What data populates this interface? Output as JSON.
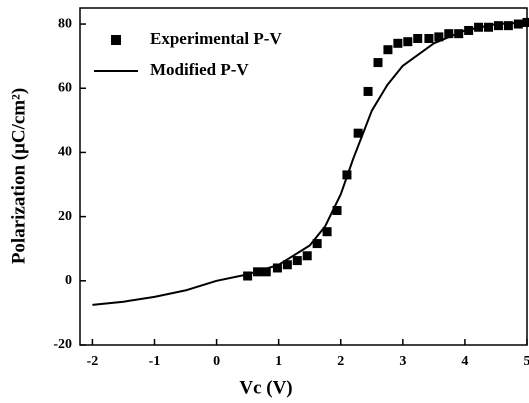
{
  "chart_data": {
    "type": "scatter",
    "xlabel": "Vc (V)",
    "ylabel": "Polarization (μC/cm²)",
    "xlim": [
      -2.2,
      5
    ],
    "xticks": [
      -2,
      -1,
      0,
      1,
      2,
      3,
      4,
      5
    ],
    "ylim": [
      -20,
      85
    ],
    "yticks": [
      -20,
      0,
      20,
      40,
      60,
      80
    ],
    "legend": "upper left",
    "series": [
      {
        "name": "Experimental P-V",
        "color": "#000000",
        "marker": "square",
        "x": [
          0.5,
          0.66,
          0.8,
          0.98,
          1.14,
          1.3,
          1.46,
          1.62,
          1.78,
          1.94,
          2.1,
          2.28,
          2.44,
          2.6,
          2.76,
          2.92,
          3.08,
          3.24,
          3.42,
          3.58,
          3.74,
          3.9,
          4.06,
          4.22,
          4.38,
          4.54,
          4.7,
          4.86,
          5
        ],
        "values": [
          1.5,
          2.8,
          2.8,
          4,
          5,
          6.3,
          7.8,
          11.6,
          15.3,
          21.9,
          33,
          46,
          59,
          68,
          72,
          74,
          74.5,
          75.5,
          75.5,
          76,
          77,
          77,
          78,
          79,
          79,
          79.5,
          79.5,
          80,
          80.5
        ]
      },
      {
        "name": "Modified P-V",
        "color": "#000000",
        "type": "line",
        "x": [
          -2,
          -1.5,
          -1,
          -0.5,
          0,
          0.5,
          1,
          1.5,
          1.75,
          2,
          2.2,
          2.5,
          2.75,
          3,
          3.5,
          4,
          4.5,
          5
        ],
        "values": [
          -7.5,
          -6.5,
          -5,
          -3,
          0,
          2,
          5,
          11,
          17,
          27,
          38,
          53,
          61,
          67,
          74,
          78,
          80,
          80.5
        ]
      }
    ]
  }
}
